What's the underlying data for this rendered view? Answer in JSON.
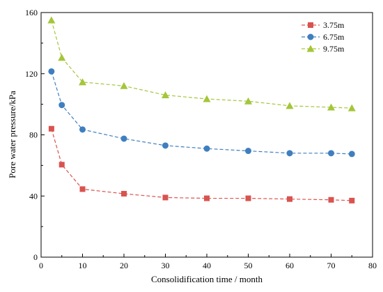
{
  "chart_data": {
    "type": "line",
    "xlabel": "Consolidification time / month",
    "ylabel": "Pore water pressure/kPa",
    "xlim": [
      0,
      80
    ],
    "ylim": [
      0,
      160
    ],
    "xticks": [
      0,
      10,
      20,
      30,
      40,
      50,
      60,
      70,
      80
    ],
    "yticks": [
      0,
      40,
      80,
      120,
      160
    ],
    "grid": false,
    "legend_position": "top-right",
    "series": [
      {
        "name": "3.75m",
        "color": "#d9534f",
        "marker": "square",
        "line_style": "dashed",
        "x": [
          2.5,
          5,
          10,
          20,
          30,
          40,
          50,
          60,
          70,
          75
        ],
        "y": [
          84,
          60.5,
          44.5,
          41.5,
          39,
          38.5,
          38.5,
          38,
          37.5,
          37
        ]
      },
      {
        "name": "6.75m",
        "color": "#3f7fbf",
        "marker": "circle",
        "line_style": "dashed",
        "x": [
          2.5,
          5,
          10,
          20,
          30,
          40,
          50,
          60,
          70,
          75
        ],
        "y": [
          121.5,
          99.5,
          83.5,
          77.5,
          73,
          71,
          69.5,
          68,
          68,
          67.5
        ]
      },
      {
        "name": "9.75m",
        "color": "#a4c639",
        "marker": "triangle",
        "line_style": "dashed",
        "x": [
          2.5,
          5,
          10,
          20,
          30,
          40,
          50,
          60,
          70,
          75
        ],
        "y": [
          155,
          130.5,
          114.5,
          112,
          106,
          103.5,
          102,
          99,
          98,
          97.5
        ]
      }
    ]
  }
}
